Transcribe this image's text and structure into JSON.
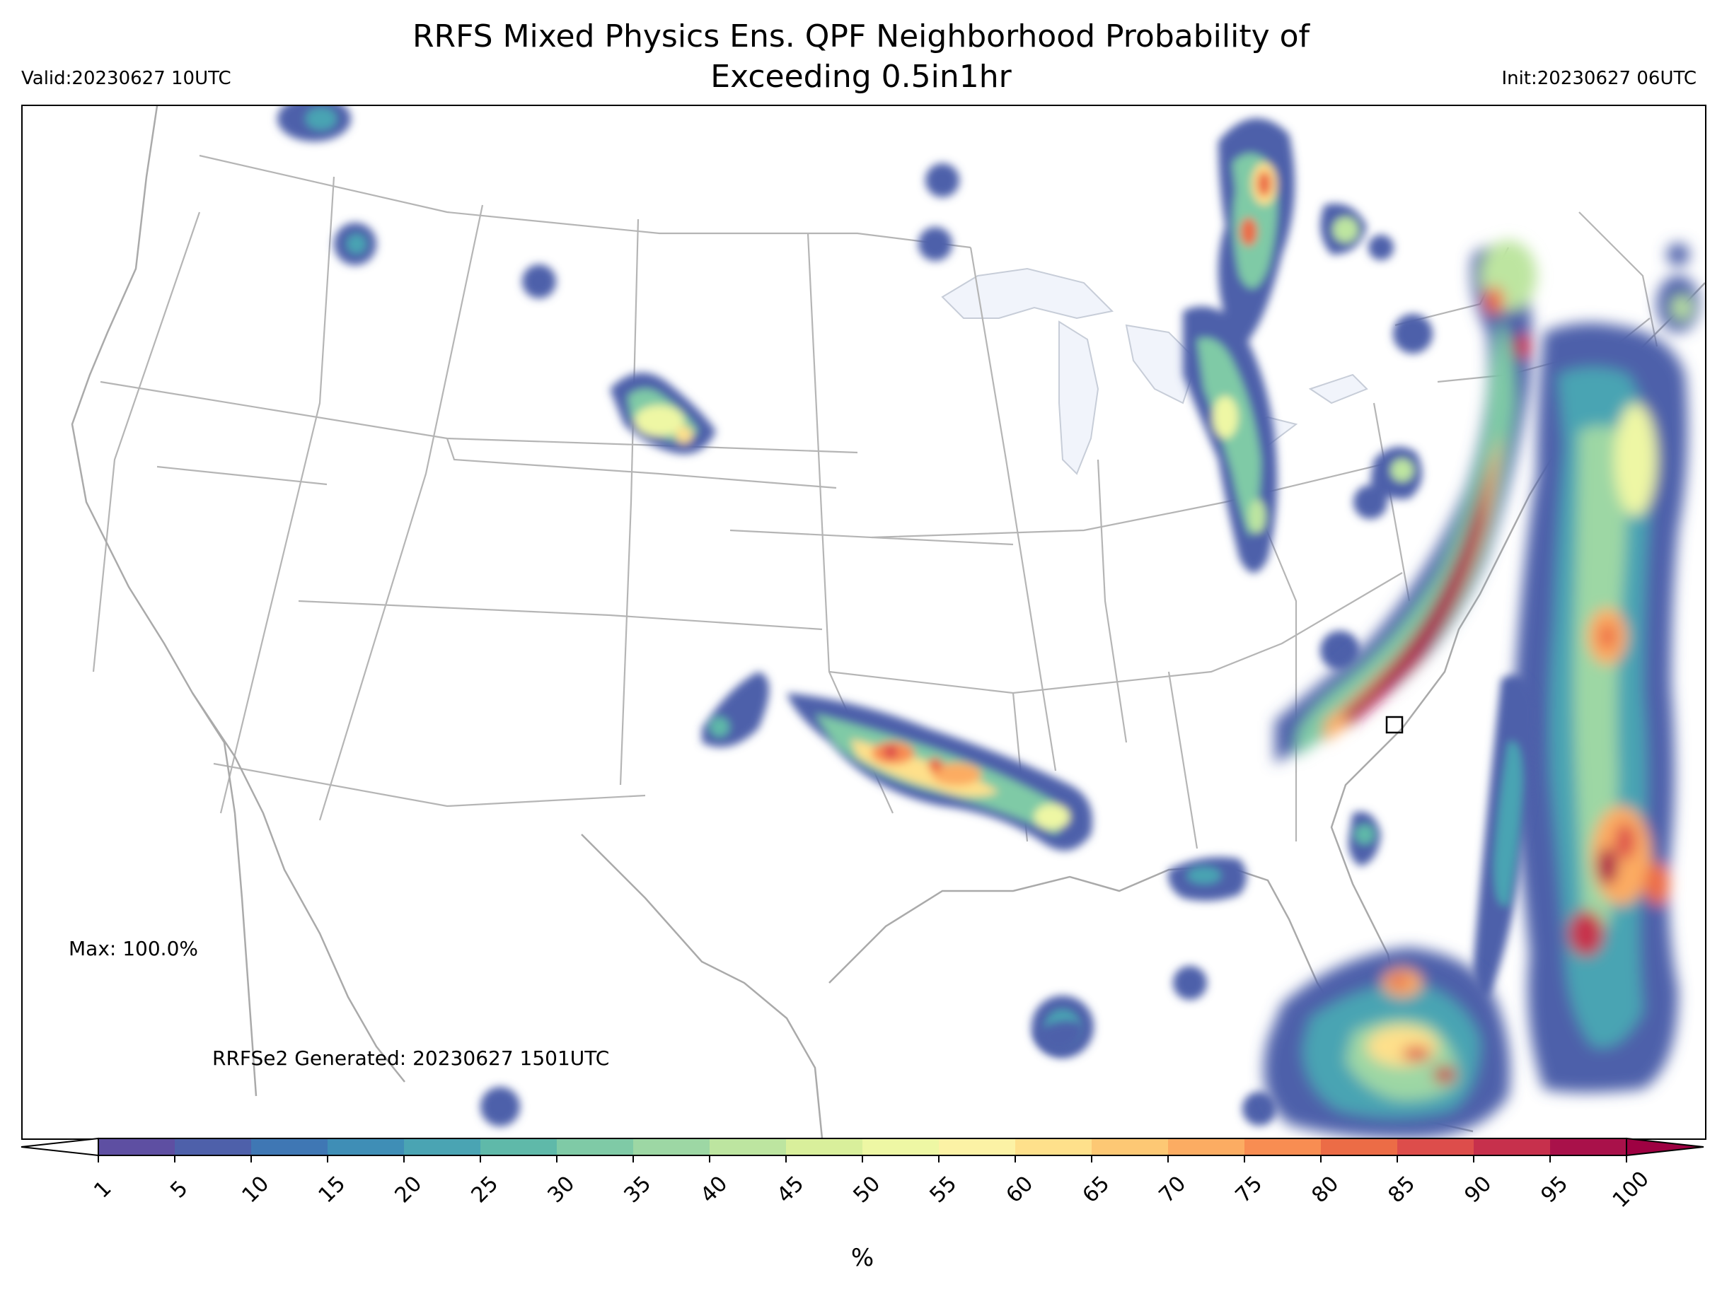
{
  "header": {
    "title_line1": "RRFS Mixed Physics Ens. QPF Neighborhood Probability of",
    "title_line2": "Exceeding 0.5in1hr",
    "valid": "Valid:20230627 10UTC",
    "init": "Init:20230627 06UTC"
  },
  "annotations": {
    "max": "Max: 100.0%",
    "generated": "RRFSe2 Generated: 20230627 1501UTC"
  },
  "colorbar": {
    "unit": "%",
    "ticks": [
      "1",
      "5",
      "10",
      "15",
      "20",
      "25",
      "30",
      "35",
      "40",
      "45",
      "50",
      "55",
      "60",
      "65",
      "70",
      "75",
      "80",
      "85",
      "90",
      "95",
      "100"
    ],
    "colors": [
      "#5e4fa2",
      "#4e60aa",
      "#3f77b4",
      "#3f8eb6",
      "#4aa4b3",
      "#5fb9a9",
      "#7fcaa6",
      "#9dd7a4",
      "#bde5a0",
      "#d9ef9b",
      "#eef7a4",
      "#fcf2a5",
      "#fee08b",
      "#fdc874",
      "#fcac62",
      "#f88d52",
      "#ec6c46",
      "#dd4d4b",
      "#c7304c",
      "#a9114a"
    ],
    "under_color": "#ffffff",
    "over_color": "#9e0142"
  },
  "map": {
    "region": "CONUS",
    "land_color": "#ffffff",
    "lake_color": "#f1f4fb",
    "border_color": "#b5b5b5"
  }
}
